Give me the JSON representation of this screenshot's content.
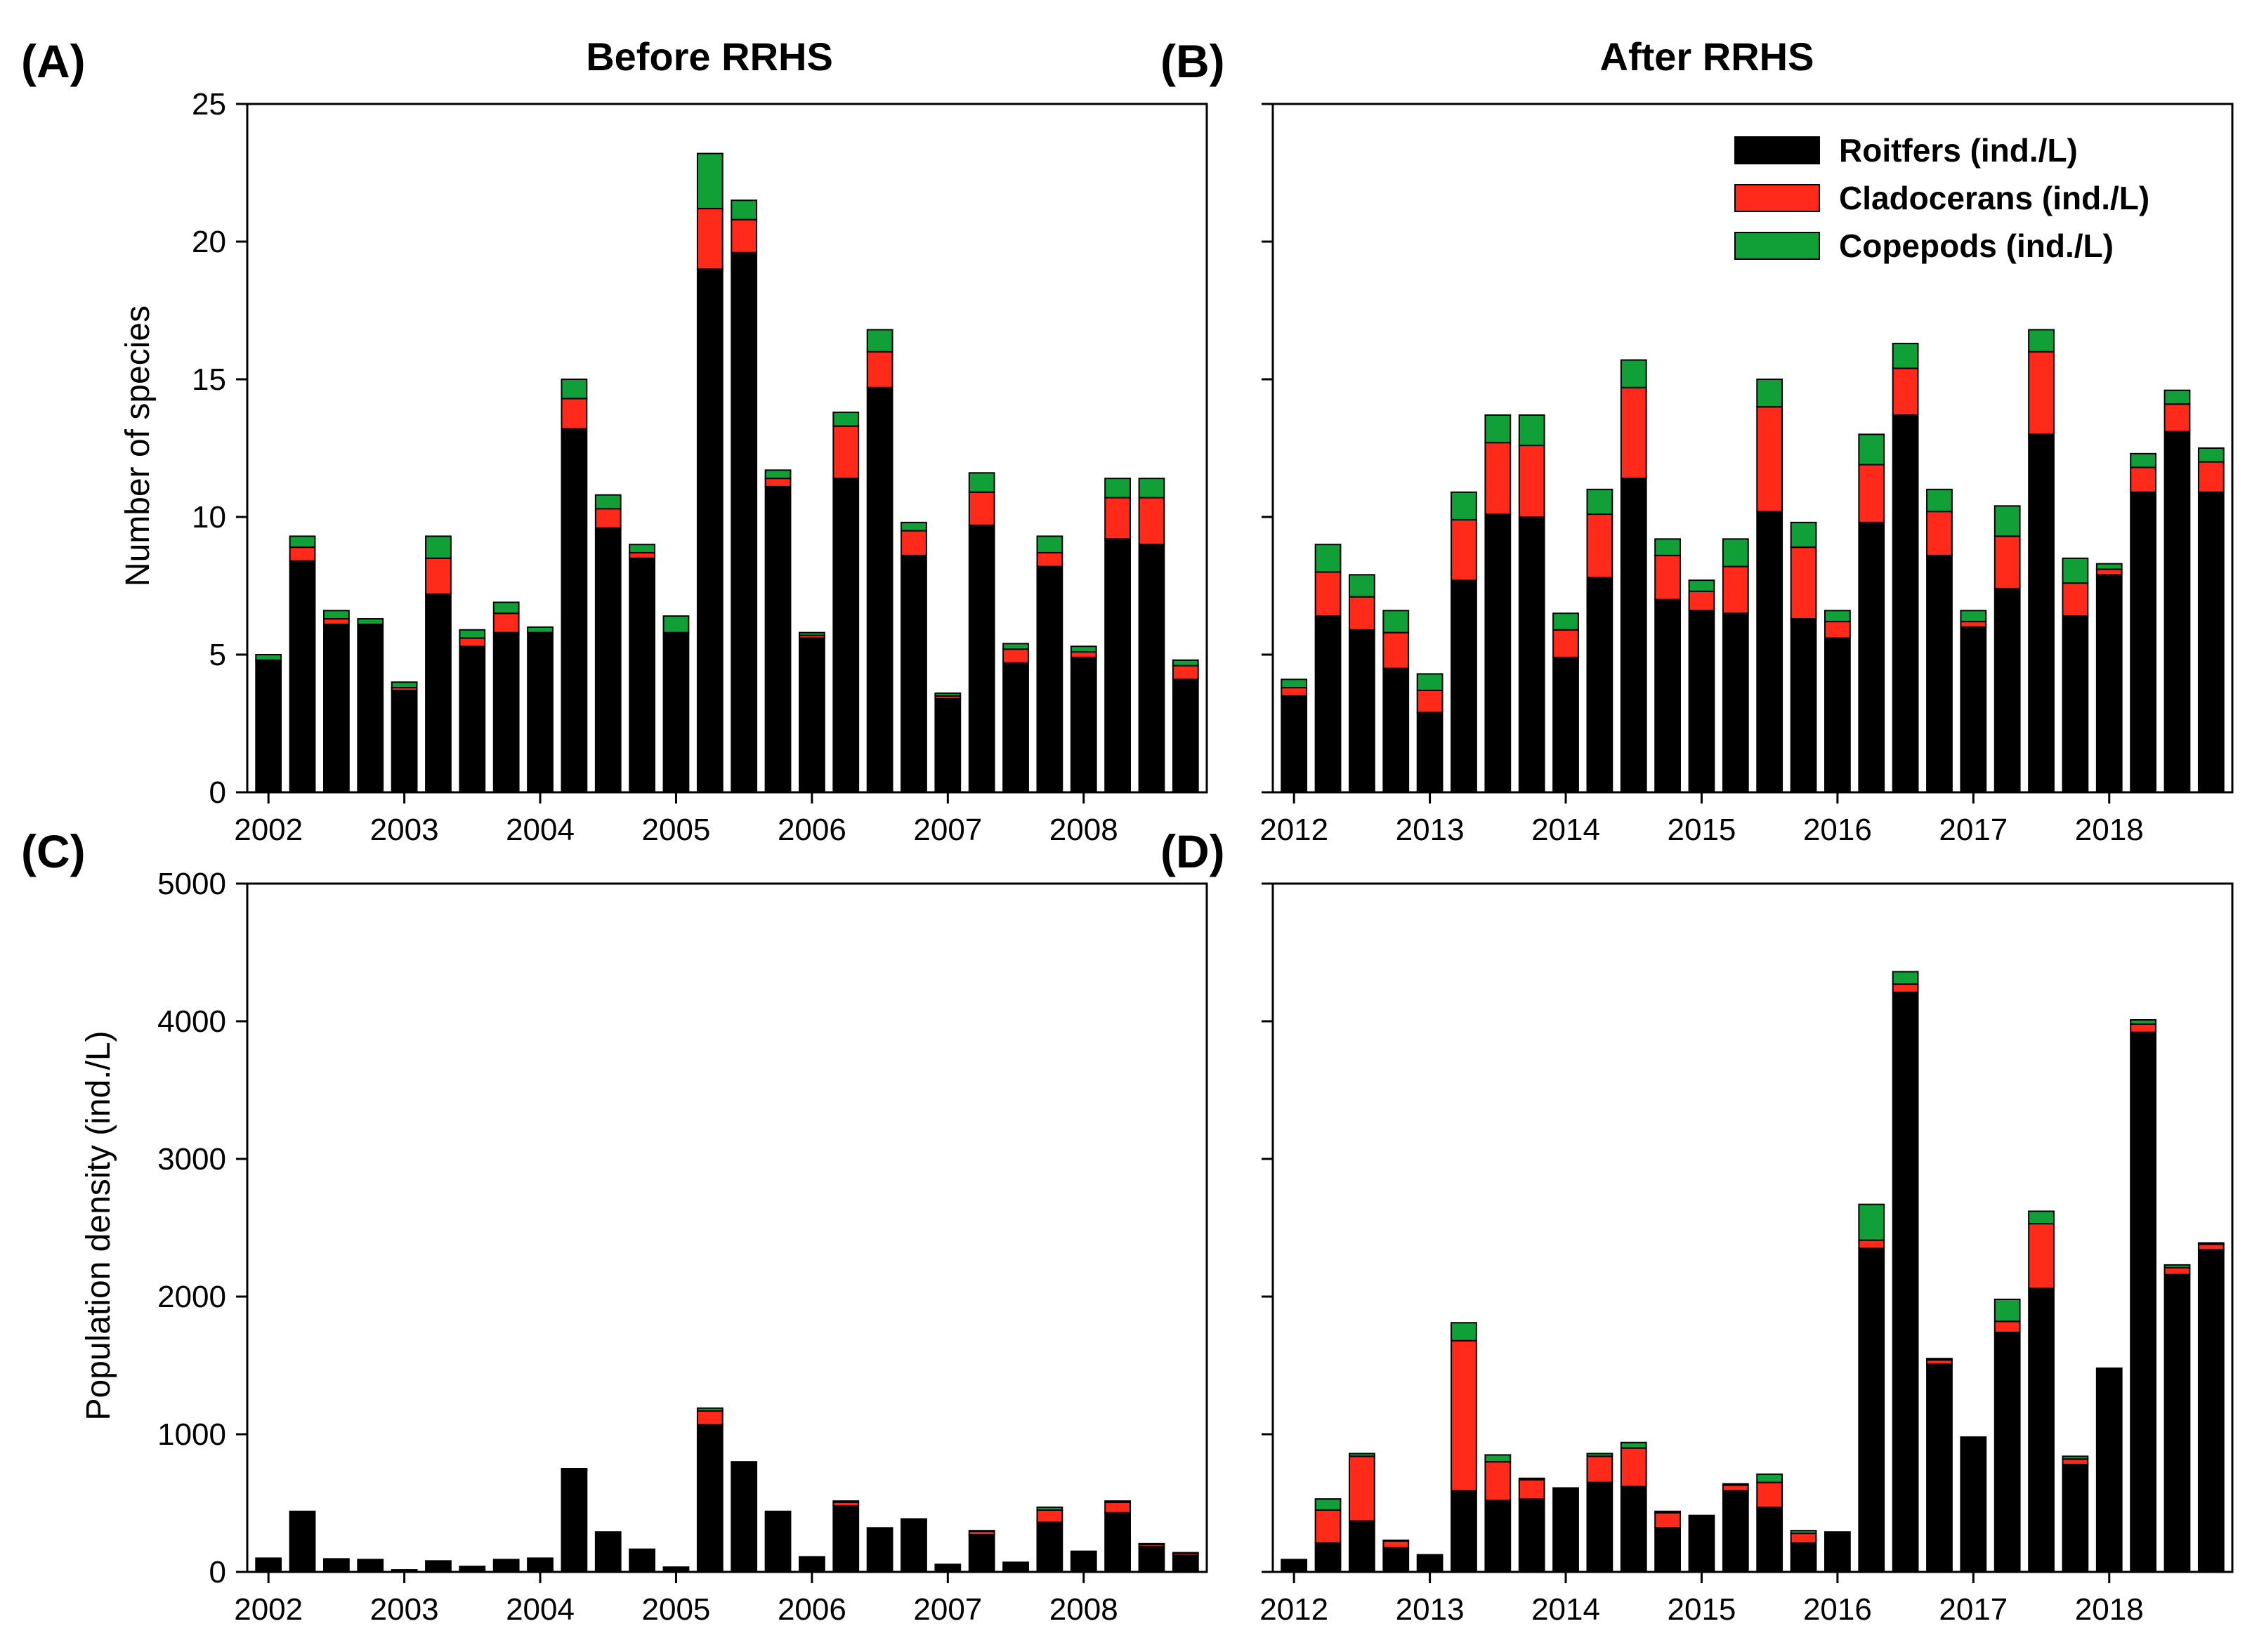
{
  "colors": {
    "rotifers": "#000000",
    "cladocerans": "#ff2a1a",
    "copepods": "#11a038",
    "frame": "#000000"
  },
  "legend": [
    {
      "label": "Roitfers (ind./L)",
      "color_key": "rotifers"
    },
    {
      "label": "Cladocerans (ind./L)",
      "color_key": "cladocerans"
    },
    {
      "label": "Copepods (ind./L)",
      "color_key": "copepods"
    }
  ],
  "chart_data": [
    {
      "panel": "(A)",
      "title": "Before RRHS",
      "type": "bar",
      "stacked": true,
      "ylabel": "Number of species",
      "ylim": [
        0,
        25
      ],
      "yticks": [
        0,
        5,
        10,
        15,
        20,
        25
      ],
      "x_tick_labels": [
        "2002",
        "2003",
        "2004",
        "2005",
        "2006",
        "2007",
        "2008"
      ],
      "x_tick_bar_index": [
        0,
        4,
        8,
        12,
        16,
        20,
        24
      ],
      "series": [
        {
          "name": "Roitfers (ind./L)",
          "color_key": "rotifers",
          "values": [
            4.8,
            8.4,
            6.1,
            6.1,
            3.7,
            7.2,
            5.3,
            5.8,
            5.8,
            13.2,
            9.6,
            8.5,
            5.8,
            19.0,
            19.6,
            11.1,
            5.6,
            11.4,
            14.7,
            8.6,
            3.4,
            9.7,
            4.7,
            8.2,
            4.9,
            9.2,
            9.0,
            4.1
          ]
        },
        {
          "name": "Cladocerans (ind./L)",
          "color_key": "cladocerans",
          "values": [
            0.0,
            0.5,
            0.2,
            0.0,
            0.1,
            1.3,
            0.3,
            0.7,
            0.0,
            1.1,
            0.7,
            0.2,
            0.0,
            2.2,
            1.2,
            0.3,
            0.1,
            1.9,
            1.3,
            0.9,
            0.1,
            1.2,
            0.5,
            0.5,
            0.2,
            1.5,
            1.7,
            0.5
          ]
        },
        {
          "name": "Copepods (ind./L)",
          "color_key": "copepods",
          "values": [
            0.2,
            0.4,
            0.3,
            0.2,
            0.2,
            0.8,
            0.3,
            0.4,
            0.2,
            0.7,
            0.5,
            0.3,
            0.6,
            2.0,
            0.7,
            0.3,
            0.1,
            0.5,
            0.8,
            0.3,
            0.1,
            0.7,
            0.2,
            0.6,
            0.2,
            0.7,
            0.7,
            0.2
          ]
        }
      ]
    },
    {
      "panel": "(B)",
      "title": "After RRHS",
      "type": "bar",
      "stacked": true,
      "ylabel": "",
      "ylim": [
        0,
        25
      ],
      "yticks": [
        0,
        5,
        10,
        15,
        20,
        25
      ],
      "x_tick_labels": [
        "2012",
        "2013",
        "2014",
        "2015",
        "2016",
        "2017",
        "2018"
      ],
      "x_tick_bar_index": [
        0,
        4,
        8,
        12,
        16,
        20,
        24
      ],
      "series": [
        {
          "name": "Roitfers (ind./L)",
          "color_key": "rotifers",
          "values": [
            3.5,
            6.4,
            5.9,
            4.5,
            2.9,
            7.7,
            10.1,
            10.0,
            4.9,
            7.8,
            11.4,
            7.0,
            6.6,
            6.5,
            10.2,
            6.3,
            5.6,
            9.8,
            13.7,
            8.6,
            6.0,
            7.4,
            13.0,
            6.4,
            7.9,
            10.9,
            13.1,
            10.9
          ]
        },
        {
          "name": "Cladocerans (ind./L)",
          "color_key": "cladocerans",
          "values": [
            0.3,
            1.6,
            1.2,
            1.3,
            0.8,
            2.2,
            2.6,
            2.6,
            1.0,
            2.3,
            3.3,
            1.6,
            0.7,
            1.7,
            3.8,
            2.6,
            0.6,
            2.1,
            1.7,
            1.6,
            0.2,
            1.9,
            3.0,
            1.2,
            0.2,
            0.9,
            1.0,
            1.1
          ]
        },
        {
          "name": "Copepods (ind./L)",
          "color_key": "copepods",
          "values": [
            0.3,
            1.0,
            0.8,
            0.8,
            0.6,
            1.0,
            1.0,
            1.1,
            0.6,
            0.9,
            1.0,
            0.6,
            0.4,
            1.0,
            1.0,
            0.9,
            0.4,
            1.1,
            0.9,
            0.8,
            0.4,
            1.1,
            0.8,
            0.9,
            0.2,
            0.5,
            0.5,
            0.5
          ]
        }
      ]
    },
    {
      "panel": "(C)",
      "title": "",
      "type": "bar",
      "stacked": true,
      "ylabel": "Population density (ind./L)",
      "ylim": [
        0,
        5000
      ],
      "yticks": [
        0,
        1000,
        2000,
        3000,
        4000,
        5000
      ],
      "x_tick_labels": [
        "2002",
        "2003",
        "2004",
        "2005",
        "2006",
        "2007",
        "2008"
      ],
      "x_tick_bar_index": [
        0,
        4,
        8,
        12,
        16,
        20,
        24
      ],
      "series": [
        {
          "name": "Roitfers (ind./L)",
          "color_key": "rotifers",
          "values": [
            100,
            440,
            95,
            90,
            15,
            80,
            40,
            90,
            100,
            740,
            290,
            165,
            35,
            1070,
            800,
            440,
            110,
            480,
            320,
            370,
            55,
            270,
            70,
            360,
            150,
            430,
            185,
            120
          ]
        },
        {
          "name": "Cladocerans (ind./L)",
          "color_key": "cladocerans",
          "values": [
            0,
            0,
            0,
            0,
            0,
            0,
            0,
            0,
            0,
            5,
            0,
            0,
            0,
            100,
            0,
            0,
            0,
            25,
            0,
            10,
            0,
            25,
            0,
            90,
            0,
            75,
            15,
            15
          ]
        },
        {
          "name": "Copepods (ind./L)",
          "color_key": "copepods",
          "values": [
            0,
            0,
            0,
            0,
            0,
            0,
            0,
            0,
            0,
            5,
            0,
            0,
            0,
            20,
            0,
            0,
            0,
            10,
            0,
            5,
            0,
            5,
            0,
            20,
            0,
            10,
            5,
            5
          ]
        }
      ]
    },
    {
      "panel": "(D)",
      "title": "",
      "type": "bar",
      "stacked": true,
      "ylabel": "",
      "ylim": [
        0,
        5000
      ],
      "yticks": [
        0,
        1000,
        2000,
        3000,
        4000,
        5000
      ],
      "x_tick_labels": [
        "2012",
        "2013",
        "2014",
        "2015",
        "2016",
        "2017",
        "2018"
      ],
      "x_tick_bar_index": [
        0,
        4,
        8,
        12,
        16,
        20,
        24
      ],
      "series": [
        {
          "name": "Roitfers (ind./L)",
          "color_key": "rotifers",
          "values": [
            90,
            210,
            370,
            175,
            125,
            590,
            520,
            530,
            610,
            650,
            620,
            320,
            410,
            590,
            470,
            210,
            290,
            2350,
            4210,
            1510,
            980,
            1740,
            2060,
            780,
            1480,
            3920,
            2160,
            2340
          ]
        },
        {
          "name": "Cladocerans (ind./L)",
          "color_key": "cladocerans",
          "values": [
            0,
            240,
            470,
            50,
            0,
            1090,
            280,
            140,
            0,
            190,
            280,
            110,
            0,
            40,
            180,
            70,
            0,
            60,
            60,
            30,
            0,
            80,
            470,
            40,
            0,
            60,
            50,
            40
          ]
        },
        {
          "name": "Copepods (ind./L)",
          "color_key": "copepods",
          "values": [
            0,
            80,
            20,
            5,
            0,
            130,
            50,
            10,
            0,
            20,
            40,
            10,
            0,
            10,
            60,
            20,
            0,
            260,
            90,
            10,
            0,
            160,
            90,
            20,
            0,
            30,
            20,
            10
          ]
        }
      ]
    }
  ]
}
